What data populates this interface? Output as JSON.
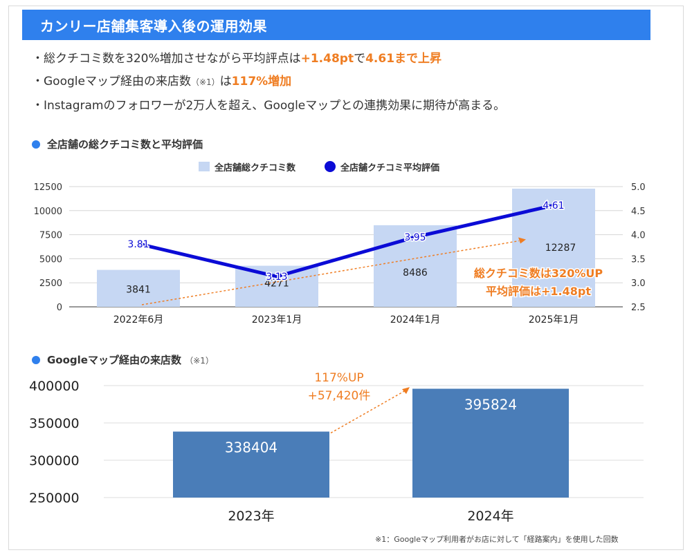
{
  "header": {
    "title": "カンリー店舗集客導入後の運用効果"
  },
  "bullets": [
    {
      "prefix": "・総クチコミ数を320%増加させながら平均評点は",
      "hl1": "+1.48pt",
      "mid": "で",
      "hl2": "4.61まで上昇",
      "note": "",
      "post": ""
    },
    {
      "prefix": "・Googleマップ経由の来店数",
      "note": "（※1）",
      "post": "は",
      "hl1": "117%増加",
      "mid": "",
      "hl2": ""
    },
    {
      "prefix": "・Instagramのフォロワーが2万人を超え、Googleマップとの連携効果に期待が高まる。",
      "hl1": "",
      "mid": "",
      "hl2": "",
      "note": "",
      "post": ""
    }
  ],
  "section1": {
    "title": "全店舗の総クチコミ数と平均評価",
    "note": ""
  },
  "section2": {
    "title": "Googleマップ経由の来店数",
    "note": "（※1）"
  },
  "footnote": "※1：Googleマップ利用者がお店に対して「経路案内」を使用した回数",
  "colors": {
    "accent": "#2f80ed",
    "orange": "#ef7d22",
    "bar1": "#c6d7f3",
    "line": "#0b0bd6",
    "bar2": "#4a7db8"
  },
  "chart_data": [
    {
      "type": "bar",
      "categories": [
        "2022年6月",
        "2023年1月",
        "2024年1月",
        "2025年1月"
      ],
      "series": [
        {
          "name": "全店舗総クチコミ数",
          "type": "bar",
          "axis": "left",
          "values": [
            3841,
            4271,
            8486,
            12287
          ]
        },
        {
          "name": "全店舗クチコミ平均評価",
          "type": "line",
          "axis": "right",
          "values": [
            3.81,
            3.13,
            3.95,
            4.61
          ]
        }
      ],
      "ylim_left": [
        0,
        12500
      ],
      "yticks_left": [
        "12500",
        "10000",
        "7500",
        "5000",
        "2500",
        "0"
      ],
      "ylim_right": [
        2.5,
        5.0
      ],
      "yticks_right": [
        "5.0",
        "4.5",
        "4.0",
        "3.5",
        "3.0",
        "2.5"
      ],
      "annotation_lines": [
        "総クチコミ数は320%UP",
        "平均評価は+1.48pt"
      ],
      "grid": true,
      "legend": "top"
    },
    {
      "type": "bar",
      "categories": [
        "2023年",
        "2024年"
      ],
      "values": [
        338404,
        395824
      ],
      "ylim": [
        250000,
        400000
      ],
      "yticks": [
        "400000",
        "350000",
        "300000",
        "250000"
      ],
      "annotation_lines": [
        "117%UP",
        "+57,420件"
      ],
      "grid": true
    }
  ]
}
